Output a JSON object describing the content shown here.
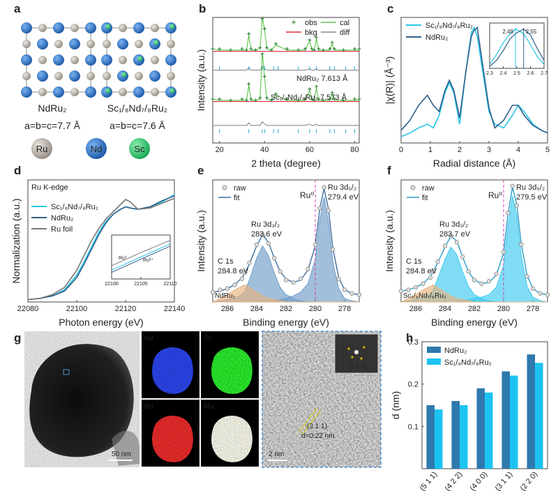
{
  "panel_labels": [
    "a",
    "b",
    "c",
    "d",
    "e",
    "f",
    "g",
    "h"
  ],
  "panel_a": {
    "structures": [
      {
        "label": "NdRu₂",
        "lattice": "a=b=c=7.7 Å"
      },
      {
        "label": "Sc₁/₈Nd₇/₈Ru₂",
        "lattice": "a=b=c=7.6 Å"
      }
    ],
    "legend": [
      "Ru",
      "Nd",
      "Sc"
    ]
  },
  "panel_g": {
    "eds_labels": [
      "Nd",
      "Sc",
      "Ru",
      "Mix"
    ],
    "tem_scale": "50 nm",
    "hrtem_scale": "2 nm",
    "fft_label": "(3 1 1)",
    "lattice_label": "(3 1 1)",
    "d_spacing": "d=0.22 nm"
  },
  "chart_data": [
    {
      "type": "line",
      "xlabel": "2 theta (degree)",
      "ylabel": "Intensity (a.u.)",
      "xlim": [
        17,
        82
      ],
      "xticks": [
        20,
        40,
        60,
        80
      ],
      "ylim": [
        0,
        100
      ],
      "x": [
        17,
        20,
        25,
        30,
        32,
        33,
        34,
        36,
        38,
        39,
        40,
        41,
        43,
        45,
        50,
        55,
        58,
        60,
        61,
        62,
        63,
        64,
        66,
        69,
        70,
        71,
        75,
        80,
        82
      ],
      "series": [
        {
          "name": "obs",
          "color": "#1f7a2e",
          "marker": "+",
          "values": [
            75,
            75,
            74,
            75,
            74,
            87,
            75,
            74,
            76,
            99,
            91,
            76,
            74,
            79,
            75,
            74,
            75,
            82,
            75,
            74,
            84,
            75,
            74,
            75,
            80,
            75,
            74,
            75,
            75
          ],
          "values_2": [
            35,
            35,
            34,
            35,
            34,
            47,
            35,
            34,
            36,
            71,
            53,
            36,
            34,
            39,
            35,
            34,
            35,
            43,
            35,
            34,
            45,
            35,
            34,
            35,
            40,
            35,
            34,
            35,
            35
          ]
        },
        {
          "name": "cal",
          "color": "#5cc24a",
          "values": [
            75,
            74,
            74,
            74,
            74,
            86,
            74,
            74,
            75,
            100,
            90,
            75,
            74,
            78,
            74,
            74,
            74,
            81,
            74,
            74,
            83,
            74,
            74,
            74,
            79,
            74,
            74,
            74,
            74
          ],
          "values_2": [
            35,
            34,
            34,
            34,
            34,
            46,
            34,
            34,
            35,
            72,
            52,
            35,
            34,
            38,
            34,
            34,
            34,
            42,
            34,
            34,
            44,
            34,
            34,
            34,
            39,
            34,
            34,
            34,
            34
          ]
        },
        {
          "name": "bkg",
          "color": "#e0303a",
          "values": [
            73,
            73,
            73,
            73,
            73,
            73,
            73,
            73,
            73,
            73,
            73,
            73,
            73,
            73,
            73,
            73,
            73,
            73,
            73,
            73,
            73,
            73,
            73,
            73,
            73,
            73,
            73,
            73,
            73
          ],
          "values_2": [
            33,
            33,
            33,
            33,
            33,
            33,
            33,
            33,
            33,
            33,
            33,
            33,
            33,
            33,
            33,
            33,
            33,
            33,
            33,
            33,
            33,
            33,
            33,
            33,
            33,
            33,
            33,
            33,
            33
          ]
        },
        {
          "name": "diff",
          "color": "#8a8a8a",
          "values": [
            58,
            58,
            58,
            58,
            58,
            60,
            58,
            58,
            58,
            61,
            59,
            58,
            58,
            58,
            58,
            58,
            58,
            59,
            58,
            58,
            59,
            58,
            58,
            58,
            58,
            58,
            58,
            58,
            58
          ],
          "values_2": [
            14,
            14,
            14,
            14,
            14,
            16,
            14,
            14,
            14,
            17,
            15,
            14,
            14,
            14,
            14,
            14,
            14,
            15,
            14,
            14,
            15,
            14,
            14,
            14,
            14,
            14,
            14,
            14,
            14
          ]
        }
      ],
      "reflections": [
        20,
        33,
        39,
        40,
        44,
        46,
        55,
        60,
        63,
        69,
        71,
        76,
        80
      ],
      "annotations": [
        "NdRu₂  7.613 Å",
        "Sc₁/₈Nd₇/₈Ru₂  7.573 Å"
      ],
      "annotation_colors": [
        "#3d7fb5",
        "#2fbfe0"
      ]
    },
    {
      "type": "line",
      "xlabel": "Radial distance (Å)",
      "ylabel": "|χ(R)| (Å⁻³)",
      "xlim": [
        0,
        5
      ],
      "xticks": [
        0,
        1,
        2,
        3,
        4,
        5
      ],
      "ylim": [
        0,
        100
      ],
      "x": [
        0,
        0.3,
        0.6,
        0.9,
        1.1,
        1.3,
        1.5,
        1.65,
        1.8,
        2.0,
        2.2,
        2.4,
        2.5,
        2.6,
        2.8,
        3.0,
        3.2,
        3.5,
        3.8,
        4.0,
        4.2,
        4.5,
        4.8,
        5
      ],
      "series": [
        {
          "name": "Sc₁/₈Nd₇/₈Ru₂",
          "color": "#29c5e6",
          "values": [
            5,
            8,
            12,
            15,
            12,
            22,
            40,
            48,
            40,
            15,
            55,
            88,
            92,
            85,
            55,
            25,
            15,
            12,
            22,
            30,
            25,
            15,
            10,
            8
          ]
        },
        {
          "name": "NdRu₂",
          "color": "#2f5f8a",
          "values": [
            10,
            18,
            30,
            38,
            30,
            25,
            42,
            50,
            42,
            20,
            55,
            85,
            90,
            92,
            60,
            28,
            12,
            18,
            30,
            30,
            22,
            14,
            10,
            8
          ]
        }
      ],
      "inset": {
        "xlim": [
          2.3,
          2.7
        ],
        "xticks": [
          2.3,
          2.4,
          2.5,
          2.6,
          2.7
        ],
        "ylim": [
          0,
          115
        ],
        "x": [
          2.3,
          2.35,
          2.4,
          2.45,
          2.49,
          2.55,
          2.6,
          2.65,
          2.7
        ],
        "series": [
          {
            "values": [
              10,
              35,
              65,
              88,
              100,
              88,
              60,
              30,
              10
            ]
          },
          {
            "values": [
              5,
              20,
              45,
              75,
              88,
              100,
              85,
              50,
              20
            ]
          }
        ],
        "peaks": [
          2.49,
          2.55
        ]
      }
    },
    {
      "type": "line",
      "xlabel": "Photon energy (eV)",
      "ylabel": "Normalization (a.u.)",
      "legend_title": "Ru K-edge",
      "xlim": [
        22080,
        22140
      ],
      "xticks": [
        22080,
        22100,
        22120,
        22140
      ],
      "ylim": [
        0,
        100
      ],
      "x": [
        22080,
        22085,
        22090,
        22095,
        22100,
        22103,
        22106,
        22109,
        22112,
        22115,
        22118,
        22120,
        22122,
        22125,
        22130,
        22135,
        22140
      ],
      "series": [
        {
          "name": "Sc₁/₈Nd₇/₈Ru₂",
          "color": "#29c5e6",
          "values": [
            2,
            3,
            5,
            10,
            22,
            33,
            45,
            57,
            66,
            72,
            76,
            78,
            77,
            76,
            78,
            82,
            88
          ]
        },
        {
          "name": "NdRu₂",
          "color": "#2f5f8a",
          "values": [
            2,
            3,
            5,
            9,
            20,
            31,
            43,
            55,
            65,
            72,
            76,
            78,
            77,
            76,
            78,
            83,
            87
          ]
        },
        {
          "name": "Ru foil",
          "color": "#777777",
          "values": [
            2,
            3,
            6,
            12,
            26,
            38,
            50,
            60,
            68,
            74,
            80,
            84,
            82,
            76,
            77,
            81,
            85
          ]
        }
      ],
      "inset": {
        "xlim": [
          22100,
          22110
        ],
        "xticks": [
          22100,
          22105,
          22110
        ],
        "ylim": [
          0,
          100
        ],
        "x": [
          22100,
          22105,
          22110
        ],
        "series": [
          {
            "values": [
              20,
              50,
              80
            ]
          },
          {
            "values": [
              15,
              45,
              75
            ]
          },
          {
            "values": [
              30,
              60,
              88
            ]
          }
        ],
        "labels": [
          "Ru⁰",
          "Ruᵟ⁺"
        ]
      }
    },
    {
      "type": "line",
      "xlabel": "Binding energy (eV)",
      "ylabel": "Intensity (a.u.)",
      "xlim": [
        287,
        277
      ],
      "xticks": [
        286,
        284,
        282,
        280,
        278
      ],
      "ylim": [
        0,
        100
      ],
      "x": [
        287,
        286.5,
        286,
        285.5,
        285,
        284.8,
        284.5,
        284,
        283.6,
        283.2,
        282.8,
        282.4,
        282,
        281.5,
        281,
        280.5,
        280,
        279.7,
        279.4,
        279.1,
        278.8,
        278.4,
        278,
        277.5,
        277
      ],
      "series": [
        {
          "name": "raw",
          "color": "#8c8c8c",
          "marker": "o",
          "values": [
            8,
            10,
            11,
            14,
            19,
            24,
            32,
            47,
            55,
            48,
            36,
            25,
            18,
            16,
            19,
            27,
            47,
            77,
            94,
            75,
            43,
            19,
            10,
            7,
            6
          ]
        },
        {
          "name": "fit",
          "color": "#3d6f9e",
          "values": [
            8,
            9,
            11,
            14,
            20,
            24,
            31,
            46,
            55,
            49,
            36,
            25,
            19,
            16,
            18,
            26,
            46,
            76,
            93,
            76,
            44,
            20,
            10,
            7,
            6
          ]
        }
      ],
      "components": [
        {
          "color": "#6f9cc8",
          "values": [
            0,
            0,
            0,
            0,
            0,
            0,
            0,
            0,
            0,
            0,
            1,
            2,
            3,
            5,
            8,
            15,
            35,
            67,
            86,
            66,
            33,
            11,
            3,
            1,
            0
          ]
        },
        {
          "color": "#6f9cc8",
          "values": [
            0,
            1,
            2,
            3,
            6,
            9,
            18,
            36,
            46,
            38,
            24,
            12,
            6,
            3,
            1,
            0,
            0,
            0,
            0,
            0,
            0,
            0,
            0,
            0,
            0
          ]
        },
        {
          "color": "#e7b27e",
          "values": [
            0,
            3,
            6,
            10,
            13,
            14,
            12,
            8,
            5,
            3,
            2,
            1,
            0,
            0,
            0,
            0,
            0,
            0,
            0,
            0,
            0,
            0,
            0,
            0,
            0
          ]
        }
      ],
      "peak_labels": [
        [
          "Ru 3d₃/₂",
          "283.6 eV"
        ],
        [
          "Ru 3d₅/₂",
          "279.4 eV"
        ],
        [
          "C 1s",
          "284.8 eV"
        ]
      ],
      "reference": {
        "label": "Ru⁰",
        "x": 280
      },
      "sample": "NdRu₂"
    },
    {
      "type": "line",
      "xlabel": "Binding energy (eV)",
      "ylabel": "Intensity (a.u.)",
      "xlim": [
        287,
        277
      ],
      "xticks": [
        286,
        284,
        282,
        280,
        278
      ],
      "ylim": [
        0,
        100
      ],
      "x": [
        287,
        286.5,
        286,
        285.5,
        285,
        284.8,
        284.5,
        284,
        283.6,
        283.2,
        282.8,
        282.4,
        282,
        281.5,
        281,
        280.5,
        280,
        279.7,
        279.4,
        279.1,
        278.8,
        278.4,
        278,
        277.5,
        277
      ],
      "series": [
        {
          "name": "raw",
          "color": "#8c8c8c",
          "marker": "o",
          "values": [
            9,
            10,
            12,
            15,
            20,
            25,
            33,
            46,
            54,
            49,
            37,
            25,
            18,
            15,
            17,
            23,
            41,
            73,
            95,
            79,
            47,
            21,
            11,
            7,
            6
          ]
        },
        {
          "name": "fit",
          "color": "#2a9cc8",
          "values": [
            9,
            10,
            12,
            15,
            21,
            25,
            32,
            45,
            54,
            50,
            37,
            25,
            18,
            15,
            16,
            22,
            40,
            72,
            94,
            80,
            48,
            22,
            11,
            7,
            6
          ]
        }
      ],
      "components": [
        {
          "color": "#3ccaf0",
          "values": [
            0,
            0,
            0,
            0,
            0,
            0,
            0,
            0,
            0,
            0,
            1,
            2,
            3,
            4,
            6,
            12,
            30,
            62,
            87,
            71,
            38,
            13,
            4,
            1,
            0
          ]
        },
        {
          "color": "#3ccaf0",
          "values": [
            0,
            1,
            2,
            4,
            7,
            10,
            19,
            35,
            45,
            39,
            25,
            13,
            6,
            3,
            1,
            0,
            0,
            0,
            0,
            0,
            0,
            0,
            0,
            0,
            0
          ]
        },
        {
          "color": "#e7b27e",
          "values": [
            0,
            3,
            6,
            10,
            13,
            14,
            12,
            8,
            5,
            3,
            2,
            1,
            0,
            0,
            0,
            0,
            0,
            0,
            0,
            0,
            0,
            0,
            0,
            0,
            0
          ]
        }
      ],
      "peak_labels": [
        [
          "Ru 3d₃/₂",
          "283.7 eV"
        ],
        [
          "Ru 3d₅/₂",
          "279.5 eV"
        ],
        [
          "C 1s",
          "284.8 eV"
        ]
      ],
      "reference": {
        "label": "Ru⁰",
        "x": 280
      },
      "sample": "Sc₁/₈Nd₇/₈Ru₂"
    },
    {
      "type": "bar",
      "ylabel": "d (nm)",
      "categories": [
        "(5 1 1)",
        "(4 2 2)",
        "(4 0 0)",
        "(3 1 1)",
        "(2 2 0)"
      ],
      "ylim": [
        0,
        0.3
      ],
      "yticks": [
        0.1,
        0.2,
        0.3
      ],
      "series": [
        {
          "name": "NdRu₂",
          "color": "#2e79ad",
          "values": [
            0.15,
            0.16,
            0.19,
            0.23,
            0.27
          ]
        },
        {
          "name": "Sc₁/₈Nd₇/₈Ru₂",
          "color": "#1cc3f2",
          "values": [
            0.14,
            0.15,
            0.18,
            0.22,
            0.25
          ]
        }
      ]
    }
  ]
}
